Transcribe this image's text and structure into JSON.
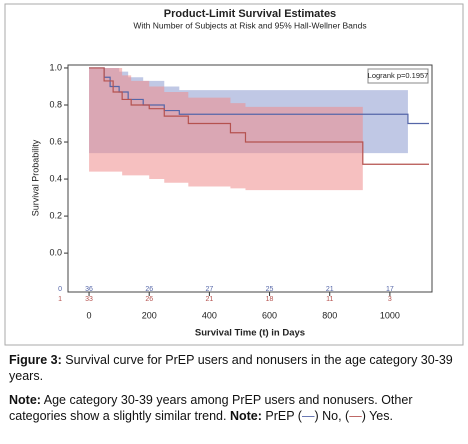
{
  "chart_data": {
    "type": "survival",
    "title": "Product-Limit Survival Estimates",
    "subtitle": "With Number of Subjects at Risk and 95% Hall-Wellner Bands",
    "xlabel": "Survival Time (t) in Days",
    "ylabel": "Survival Probability",
    "annotation": "Logrank p=0.1957",
    "xlim": [
      -70,
      1140
    ],
    "ylim": [
      -0.21,
      1.016
    ],
    "xticks": [
      0,
      200,
      400,
      600,
      800,
      1000
    ],
    "yticks": [
      {
        "value": 0,
        "label": "0.0"
      },
      0.2,
      0.4,
      0.6,
      0.8,
      {
        "value": 1,
        "label": "1.0"
      }
    ],
    "series": [
      {
        "name": "0",
        "color": "#5566a8",
        "band_color": "#8c9ad0",
        "x": [
          0,
          50,
          70,
          100,
          130,
          180,
          250,
          300,
          1060,
          1130
        ],
        "values": [
          1,
          0.95,
          0.9,
          0.87,
          0.83,
          0.8,
          0.77,
          0.75,
          0.7,
          0.7
        ],
        "lower": [
          0.54,
          0.54,
          0.54,
          0.54,
          0.54,
          0.54,
          0.54,
          0.54,
          null,
          null
        ],
        "upper": [
          1,
          1,
          1,
          0.98,
          0.95,
          0.93,
          0.9,
          0.88,
          null,
          null
        ]
      },
      {
        "name": "1",
        "color": "#b5524f",
        "band_color": "#ef8c8c",
        "x": [
          0,
          50,
          80,
          110,
          140,
          200,
          250,
          330,
          470,
          520,
          910,
          1130
        ],
        "values": [
          1,
          0.93,
          0.87,
          0.83,
          0.8,
          0.78,
          0.74,
          0.7,
          0.65,
          0.6,
          0.48,
          0.48
        ],
        "lower": [
          0.44,
          0.44,
          0.44,
          0.42,
          0.42,
          0.4,
          0.38,
          0.36,
          0.35,
          0.34,
          null,
          null
        ],
        "upper": [
          1,
          1,
          1,
          0.96,
          0.93,
          0.9,
          0.87,
          0.84,
          0.81,
          0.79,
          null,
          null
        ]
      }
    ],
    "at_risk": [
      [
        36,
        26,
        27,
        25,
        21,
        17
      ],
      [
        33,
        26,
        21,
        18,
        11,
        3
      ]
    ]
  },
  "caption": {
    "label": "Figure 3:",
    "text": "Survival curve for PrEP users and nonusers in the age category 30-39 years."
  },
  "note": {
    "label": "Note:",
    "text": "Age category 30-39 years among PrEP users and nonusers. Other categories show a slightly similar trend.",
    "label2": "Note:",
    "parts": [
      "PrEP (",
      "—",
      ") No, (",
      "—",
      ") Yes."
    ]
  }
}
